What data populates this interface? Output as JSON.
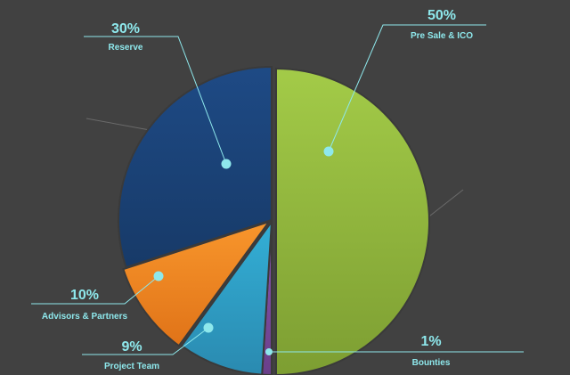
{
  "chart_data": {
    "type": "pie",
    "slices": [
      {
        "label": "Pre Sale & ICO",
        "value": 50,
        "value_label": "50%",
        "color": "#8fba3d"
      },
      {
        "label": "Bounties",
        "value": 1,
        "value_label": "1%",
        "color": "#7a4a9e"
      },
      {
        "label": "Project Team",
        "value": 9,
        "value_label": "9%",
        "color": "#2f9fc8"
      },
      {
        "label": "Advisors & Partners",
        "value": 10,
        "value_label": "10%",
        "color": "#f28a22"
      },
      {
        "label": "Reserve",
        "value": 30,
        "value_label": "30%",
        "color": "#1c467c"
      }
    ],
    "colors": {
      "leader_line": "#8ee8ec",
      "marker": "#8ee8ec",
      "background": "#414141"
    }
  }
}
